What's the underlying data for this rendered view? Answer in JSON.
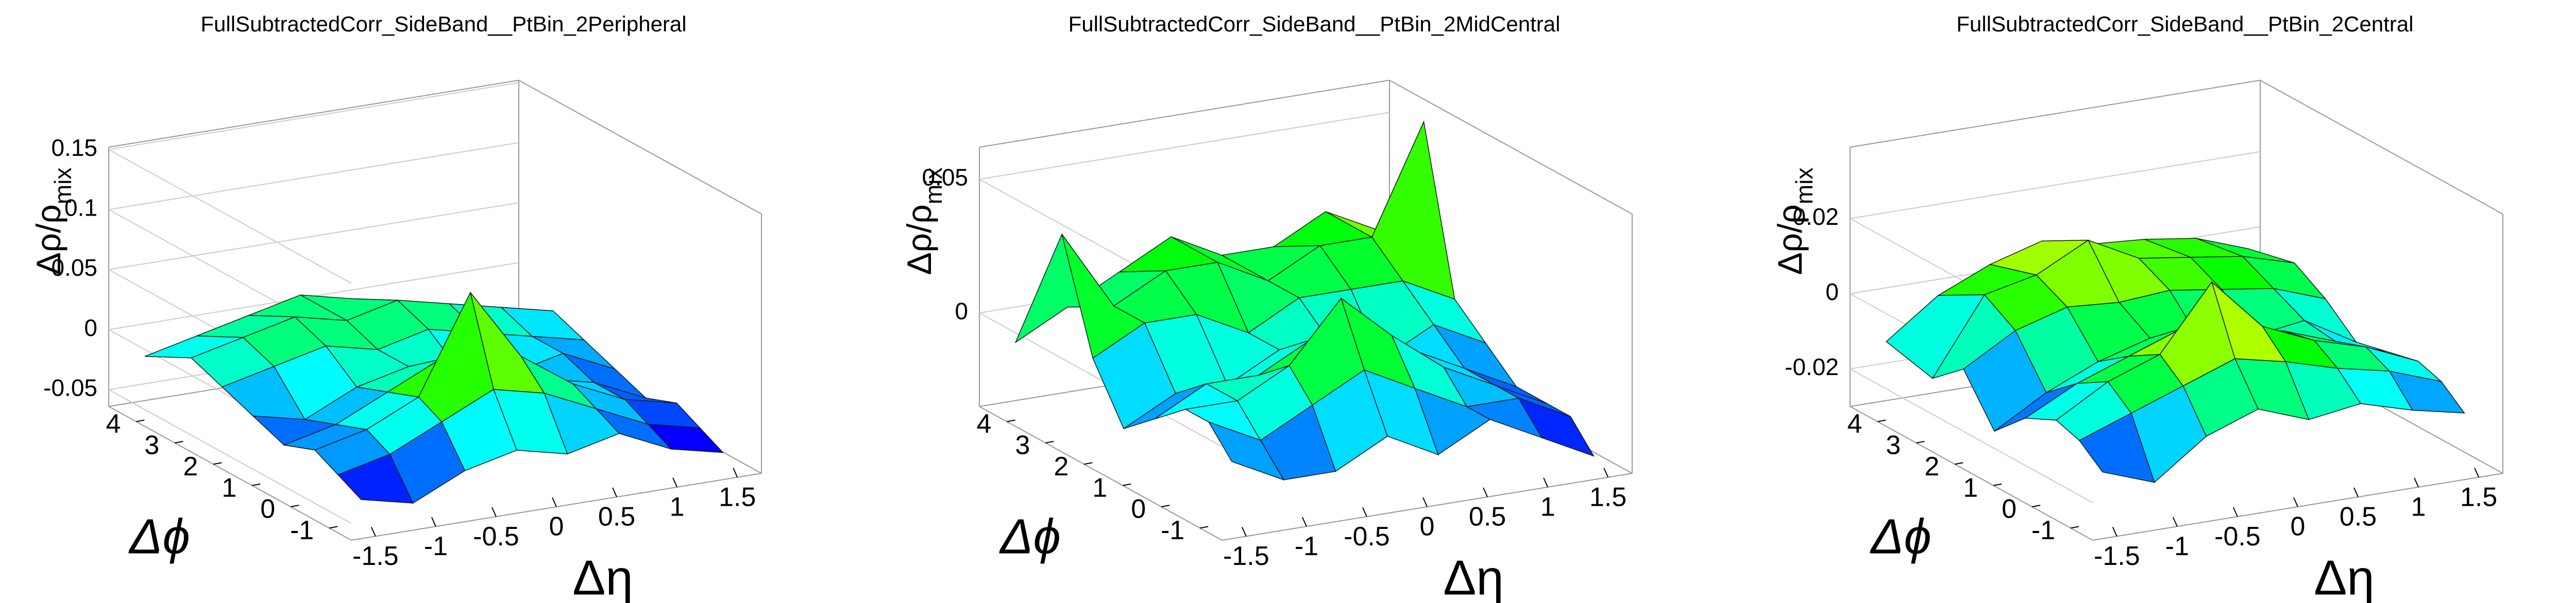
{
  "chart_data": [
    {
      "type": "surface",
      "title": "FullSubtractedCorr_SideBand__PtBin_2Peripheral",
      "xlabel": "Δη",
      "ylabel": "Δϕ",
      "zlabel": "Δρ/ρ",
      "zlabel_sub": "mix",
      "palette": "rainbow",
      "x": [
        -1.5,
        -1.07,
        -0.64,
        -0.21,
        0.21,
        0.64,
        1.07,
        1.5
      ],
      "y": [
        -1.2,
        -0.6,
        0,
        0.8,
        1.6,
        2.4,
        3.2,
        4.4
      ],
      "z": [
        [
          -0.04,
          -0.05,
          -0.03,
          -0.02,
          -0.03,
          -0.02,
          -0.04,
          -0.05
        ],
        [
          -0.03,
          -0.02,
          0.0,
          0.02,
          0.01,
          -0.01,
          -0.03,
          -0.04
        ],
        [
          -0.02,
          -0.01,
          0.01,
          0.09,
          0.03,
          0.0,
          -0.02,
          -0.03
        ],
        [
          -0.03,
          -0.02,
          0.0,
          0.02,
          0.01,
          -0.01,
          -0.02,
          -0.04
        ],
        [
          -0.02,
          -0.03,
          -0.01,
          0.0,
          -0.01,
          -0.02,
          -0.01,
          -0.03
        ],
        [
          -0.01,
          0.0,
          0.01,
          0.0,
          0.01,
          0.0,
          -0.01,
          -0.02
        ],
        [
          0.0,
          0.01,
          0.02,
          0.01,
          0.02,
          0.01,
          0.0,
          -0.01
        ],
        [
          -0.02,
          -0.01,
          0.0,
          0.01,
          0.0,
          -0.01,
          -0.02,
          -0.03
        ]
      ],
      "xlim": [
        -1.7,
        1.7
      ],
      "xticks": [
        -1.5,
        -1,
        -0.5,
        0,
        0.5,
        1,
        1.5
      ],
      "ylim": [
        -1.571,
        4.712
      ],
      "yticks": [
        -1,
        0,
        1,
        2,
        3,
        4
      ],
      "zlim": [
        -0.064,
        0.152
      ],
      "zticks": [
        -0.05,
        0,
        0.05,
        0.1,
        0.15
      ]
    },
    {
      "type": "surface",
      "title": "FullSubtractedCorr_SideBand__PtBin_2MidCentral",
      "xlabel": "Δη",
      "ylabel": "Δϕ",
      "zlabel": "Δρ/ρ",
      "zlabel_sub": "mix",
      "palette": "rainbow",
      "x": [
        -1.5,
        -1.07,
        -0.64,
        -0.21,
        0.21,
        0.64,
        1.07,
        1.5
      ],
      "y": [
        -1.2,
        -0.6,
        0,
        0.8,
        1.6,
        2.4,
        3.2,
        4.4
      ],
      "z": [
        [
          -0.01,
          -0.02,
          -0.02,
          -0.01,
          -0.02,
          -0.01,
          -0.02,
          -0.03
        ],
        [
          0.0,
          -0.01,
          0.0,
          0.01,
          0.0,
          -0.01,
          -0.01,
          -0.02
        ],
        [
          0.0,
          0.0,
          0.01,
          0.032,
          0.015,
          0.0,
          -0.01,
          -0.02
        ],
        [
          -0.01,
          0.0,
          0.0,
          0.01,
          0.01,
          0.0,
          -0.01,
          -0.02
        ],
        [
          -0.02,
          -0.01,
          -0.01,
          0.0,
          0.0,
          -0.01,
          0.0,
          -0.01
        ],
        [
          0.0,
          0.01,
          0.01,
          0.0,
          0.01,
          0.01,
          0.01,
          0.0
        ],
        [
          0.04,
          0.01,
          0.02,
          0.02,
          0.01,
          0.02,
          0.02,
          0.06
        ],
        [
          -0.01,
          0.0,
          0.01,
          0.02,
          0.01,
          0.01,
          0.02,
          0.01
        ]
      ],
      "xlim": [
        -1.7,
        1.7
      ],
      "xticks": [
        -1.5,
        -1,
        -0.5,
        0,
        0.5,
        1,
        1.5
      ],
      "ylim": [
        -1.571,
        4.712
      ],
      "yticks": [
        -1,
        0,
        1,
        2,
        3,
        4
      ],
      "zlim": [
        -0.035,
        0.062
      ],
      "zticks": [
        0,
        0.05
      ]
    },
    {
      "type": "surface",
      "title": "FullSubtractedCorr_SideBand__PtBin_2Central",
      "xlabel": "Δη",
      "ylabel": "Δϕ",
      "zlabel": "Δρ/ρ",
      "zlabel_sub": "mix",
      "palette": "rainbow",
      "x": [
        -1.5,
        -1.07,
        -0.64,
        -0.21,
        0.21,
        0.64,
        1.07,
        1.5
      ],
      "y": [
        -1.2,
        -0.6,
        0,
        0.8,
        1.6,
        2.4,
        3.2,
        4.4
      ],
      "z": [
        [
          -0.015,
          -0.02,
          -0.01,
          -0.005,
          -0.01,
          -0.008,
          -0.012,
          -0.015
        ],
        [
          -0.01,
          -0.005,
          0.0,
          0.005,
          0.002,
          -0.002,
          -0.005,
          -0.01
        ],
        [
          -0.008,
          0.0,
          0.005,
          0.022,
          0.008,
          0.002,
          -0.002,
          -0.008
        ],
        [
          -0.012,
          -0.005,
          0.0,
          0.005,
          0.002,
          0.0,
          -0.005,
          -0.01
        ],
        [
          -0.02,
          -0.012,
          -0.006,
          -0.002,
          -0.005,
          -0.006,
          -0.004,
          -0.012
        ],
        [
          -0.008,
          0.0,
          0.004,
          0.003,
          0.004,
          0.002,
          0.0,
          -0.005
        ],
        [
          -0.015,
          0.005,
          0.008,
          0.015,
          0.008,
          0.006,
          0.004,
          0.0
        ],
        [
          -0.012,
          -0.002,
          0.004,
          0.008,
          0.005,
          0.004,
          0.002,
          -0.003
        ]
      ],
      "xlim": [
        -1.7,
        1.7
      ],
      "xticks": [
        -1.5,
        -1,
        -0.5,
        0,
        0.5,
        1,
        1.5
      ],
      "ylim": [
        -1.571,
        4.712
      ],
      "yticks": [
        -1,
        0,
        1,
        2,
        3,
        4
      ],
      "zlim": [
        -0.03,
        0.039
      ],
      "zticks": [
        -0.02,
        0,
        0.02
      ]
    }
  ]
}
